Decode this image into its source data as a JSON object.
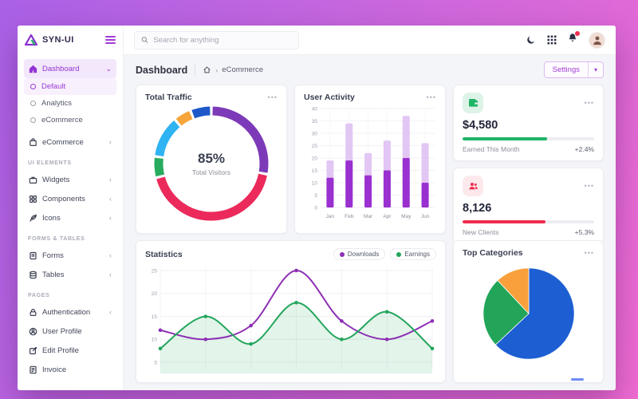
{
  "app": {
    "logo_text": "SYN-UI"
  },
  "icons": {
    "ellipsis": "•••",
    "chevron_down": "⌄",
    "chevron_collapsed": "‹",
    "caret_down": "▾",
    "breadcrumb_separator": "›"
  },
  "sidebar": {
    "dashboard": "Dashboard",
    "default": "Default",
    "analytics": "Analytics",
    "ecommerce_sub": "eCommerce",
    "ecommerce": "eCommerce",
    "section_ui": "UI ELEMENTS",
    "widgets": "Widgets",
    "components": "Components",
    "icons_item": "Icons",
    "section_forms": "FORMS & TABLES",
    "forms": "Forms",
    "tables": "Tables",
    "section_pages": "PAGES",
    "authentication": "Authentication",
    "user_profile": "User Profile",
    "edit_profile": "Edit Profile",
    "invoice": "Invoice"
  },
  "topbar": {
    "search_placeholder": "Search for anything"
  },
  "breadcrumb": {
    "title": "Dashboard",
    "crumb": "eCommerce",
    "settings_label": "Settings"
  },
  "stat_cards": [
    {
      "value": "$4,580",
      "label": "Earned This Month",
      "delta": "+2.4%",
      "progress": 64,
      "color": "#1fb567"
    },
    {
      "value": "8,126",
      "label": "New Clients",
      "delta": "+5.3%",
      "progress": 63,
      "color": "#ef2d4e"
    }
  ],
  "chart_data": [
    {
      "id": "traffic",
      "type": "donut",
      "title": "Total Traffic",
      "center_value": "85%",
      "center_label": "Total Visitors",
      "segments": [
        {
          "value": 28,
          "color": "#7d3ab8"
        },
        {
          "value": 43,
          "color": "#eb2a5b"
        },
        {
          "value": 6,
          "color": "#27ab5f"
        },
        {
          "value": 12,
          "color": "#2fb3f2"
        },
        {
          "value": 5,
          "color": "#f6a53a"
        },
        {
          "value": 6,
          "color": "#1d59c9"
        }
      ]
    },
    {
      "id": "activity",
      "type": "bar",
      "title": "User Activity",
      "categories": [
        "Jan",
        "Feb",
        "Mar",
        "Apr",
        "May",
        "Jun"
      ],
      "series": [
        {
          "name": "filled",
          "color": "#9a30cf",
          "values": [
            12,
            19,
            13,
            15,
            20,
            10
          ]
        },
        {
          "name": "total",
          "color": "#e2c6f3",
          "values": [
            19,
            34,
            22,
            27,
            37,
            26
          ]
        }
      ],
      "ylim": [
        0,
        40
      ],
      "ytick": 5
    },
    {
      "id": "statistics",
      "type": "line",
      "title": "Statistics",
      "x": [
        1,
        2,
        3,
        4,
        5,
        6,
        7
      ],
      "series": [
        {
          "name": "Downloads",
          "color": "#8d2fb5",
          "values": [
            12,
            10,
            13,
            25,
            14,
            10,
            14
          ],
          "fill": false
        },
        {
          "name": "Earnings",
          "color": "#22a55b",
          "values": [
            8,
            15,
            9,
            18,
            10,
            16,
            8
          ],
          "fill": true
        }
      ],
      "ylim": [
        5,
        25
      ],
      "yticks": [
        5,
        10,
        15,
        20,
        25
      ],
      "legend_position": "top-right",
      "grid": true
    },
    {
      "id": "categories",
      "type": "pie",
      "title": "Top Categories",
      "segments": [
        {
          "value": 63,
          "color": "#1d5fd2"
        },
        {
          "value": 25,
          "color": "#22a559"
        },
        {
          "value": 12,
          "color": "#f9a03c"
        }
      ]
    }
  ]
}
